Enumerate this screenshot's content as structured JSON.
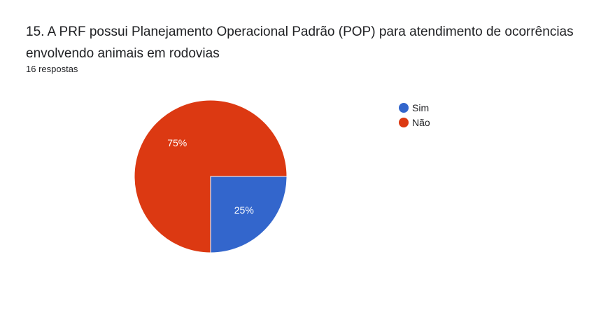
{
  "question": {
    "title": "15. A PRF possui Planejamento Operacional Padrão (POP) para atendimento de ocorrências envolvendo animais em rodovias",
    "responses": "16 respostas"
  },
  "chart_data": {
    "type": "pie",
    "title": "15. A PRF possui Planejamento Operacional Padrão (POP) para atendimento de ocorrências envolvendo animais em rodovias",
    "legend_position": "right",
    "slices": [
      {
        "label": "Sim",
        "value": 25,
        "display": "25%",
        "color": "#3366cc"
      },
      {
        "label": "Não",
        "value": 75,
        "display": "75%",
        "color": "#dc3912"
      }
    ]
  }
}
